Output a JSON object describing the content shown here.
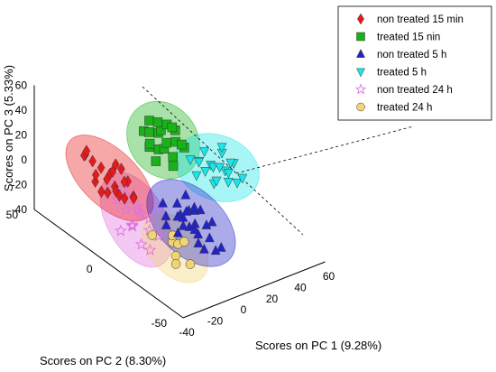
{
  "chart_data": {
    "type": "scatter",
    "title": "",
    "xlabel": "Scores on PC 1 (9.28%)",
    "ylabel": "Scores on PC 2 (8.30%)",
    "zlabel": "Scores on PC 3 (5.33%)",
    "xlim": [
      -40,
      60
    ],
    "ylim": [
      -50,
      50
    ],
    "zlim": [
      -40,
      60
    ],
    "x_ticks": [
      "-40",
      "-20",
      "0",
      "20",
      "40",
      "60"
    ],
    "y_ticks": [
      "-50",
      "0",
      "50"
    ],
    "z_ticks": [
      "-40",
      "-20",
      "0",
      "20",
      "40",
      "60"
    ],
    "legend_position": "top-right",
    "grid": false,
    "confidence_ellipsoids": true,
    "series": [
      {
        "name": "non treated 15 min",
        "marker": "diamond",
        "color": "#e8191c",
        "points": [
          [
            -22,
            28,
            10
          ],
          [
            -18,
            20,
            5
          ],
          [
            -15,
            25,
            -5
          ],
          [
            -20,
            15,
            0
          ],
          [
            -12,
            22,
            8
          ],
          [
            -25,
            30,
            15
          ],
          [
            -16,
            18,
            -8
          ],
          [
            -10,
            26,
            -2
          ],
          [
            -20,
            24,
            -12
          ],
          [
            -14,
            12,
            4
          ],
          [
            -8,
            20,
            -6
          ],
          [
            -24,
            16,
            -4
          ],
          [
            -18,
            30,
            -10
          ],
          [
            -12,
            16,
            -14
          ],
          [
            -26,
            22,
            6
          ],
          [
            -22,
            10,
            -2
          ],
          [
            -10,
            12,
            -10
          ],
          [
            -16,
            28,
            2
          ],
          [
            -6,
            24,
            0
          ],
          [
            -30,
            26,
            20
          ],
          [
            -20,
            34,
            12
          ],
          [
            -14,
            8,
            -6
          ]
        ]
      },
      {
        "name": "treated 15 nin",
        "marker": "square",
        "color": "#19b219",
        "points": [
          [
            18,
            22,
            20
          ],
          [
            24,
            26,
            16
          ],
          [
            14,
            18,
            12
          ],
          [
            28,
            20,
            10
          ],
          [
            20,
            30,
            22
          ],
          [
            32,
            24,
            14
          ],
          [
            16,
            26,
            6
          ],
          [
            22,
            16,
            4
          ],
          [
            26,
            30,
            18
          ],
          [
            12,
            22,
            14
          ],
          [
            30,
            16,
            8
          ],
          [
            18,
            12,
            2
          ],
          [
            24,
            22,
            24
          ],
          [
            34,
            28,
            12
          ],
          [
            20,
            20,
            8
          ],
          [
            14,
            28,
            18
          ],
          [
            28,
            26,
            4
          ],
          [
            22,
            32,
            10
          ],
          [
            10,
            16,
            6
          ],
          [
            26,
            14,
            14
          ]
        ]
      },
      {
        "name": "non treated 5 h",
        "marker": "triangle-up",
        "color": "#2323c8",
        "points": [
          [
            0,
            -10,
            -10
          ],
          [
            4,
            -16,
            -14
          ],
          [
            -4,
            -12,
            -8
          ],
          [
            8,
            -8,
            -12
          ],
          [
            2,
            -20,
            -18
          ],
          [
            -6,
            -6,
            -12
          ],
          [
            6,
            -14,
            -6
          ],
          [
            10,
            -18,
            -16
          ],
          [
            -2,
            -24,
            -20
          ],
          [
            4,
            -4,
            -8
          ],
          [
            12,
            -12,
            -10
          ],
          [
            0,
            -26,
            -24
          ],
          [
            -8,
            -16,
            -16
          ],
          [
            8,
            -22,
            -22
          ],
          [
            14,
            -6,
            -14
          ],
          [
            -4,
            -2,
            -6
          ],
          [
            2,
            -10,
            -20
          ],
          [
            6,
            -28,
            -26
          ],
          [
            10,
            -4,
            -4
          ],
          [
            -10,
            -10,
            -14
          ],
          [
            16,
            -16,
            -18
          ],
          [
            -2,
            -18,
            -12
          ],
          [
            4,
            -8,
            -16
          ],
          [
            12,
            -26,
            -28
          ],
          [
            0,
            -14,
            -4
          ],
          [
            8,
            -12,
            -24
          ]
        ]
      },
      {
        "name": "treated 5 h",
        "marker": "triangle-down",
        "color": "#19e6e6",
        "points": [
          [
            36,
            4,
            2
          ],
          [
            42,
            0,
            -2
          ],
          [
            30,
            6,
            6
          ],
          [
            46,
            -2,
            4
          ],
          [
            38,
            -6,
            -4
          ],
          [
            34,
            10,
            0
          ],
          [
            44,
            4,
            8
          ],
          [
            40,
            -10,
            -2
          ],
          [
            32,
            -2,
            -6
          ],
          [
            48,
            2,
            0
          ],
          [
            28,
            0,
            4
          ],
          [
            36,
            -8,
            6
          ],
          [
            42,
            8,
            -6
          ],
          [
            50,
            -4,
            -8
          ],
          [
            30,
            12,
            2
          ],
          [
            38,
            2,
            -10
          ],
          [
            46,
            6,
            10
          ],
          [
            34,
            -4,
            8
          ],
          [
            40,
            12,
            4
          ],
          [
            26,
            4,
            -2
          ]
        ]
      },
      {
        "name": "non treated 24 h",
        "marker": "star",
        "color": "#e070e0",
        "points": [
          [
            -30,
            -10,
            10
          ],
          [
            -34,
            -6,
            6
          ],
          [
            -26,
            -14,
            2
          ],
          [
            -38,
            -4,
            14
          ],
          [
            -30,
            -18,
            -2
          ],
          [
            -36,
            -12,
            0
          ],
          [
            -28,
            -2,
            8
          ],
          [
            -40,
            -16,
            4
          ],
          [
            -32,
            -8,
            -6
          ],
          [
            -24,
            -6,
            -2
          ],
          [
            -38,
            -20,
            -8
          ],
          [
            -34,
            -14,
            12
          ],
          [
            -28,
            -22,
            -4
          ],
          [
            -42,
            -10,
            -4
          ],
          [
            -30,
            0,
            16
          ],
          [
            -36,
            -24,
            -10
          ]
        ]
      },
      {
        "name": "treated 24 h",
        "marker": "circle",
        "color": "#f2d573",
        "points": [
          [
            -16,
            -20,
            -16
          ],
          [
            -20,
            -26,
            -20
          ],
          [
            -10,
            -18,
            -22
          ],
          [
            -24,
            -14,
            -12
          ],
          [
            -14,
            -30,
            -26
          ],
          [
            -18,
            -22,
            -8
          ],
          [
            -22,
            -28,
            -24
          ],
          [
            -12,
            -24,
            -14
          ]
        ]
      }
    ]
  }
}
